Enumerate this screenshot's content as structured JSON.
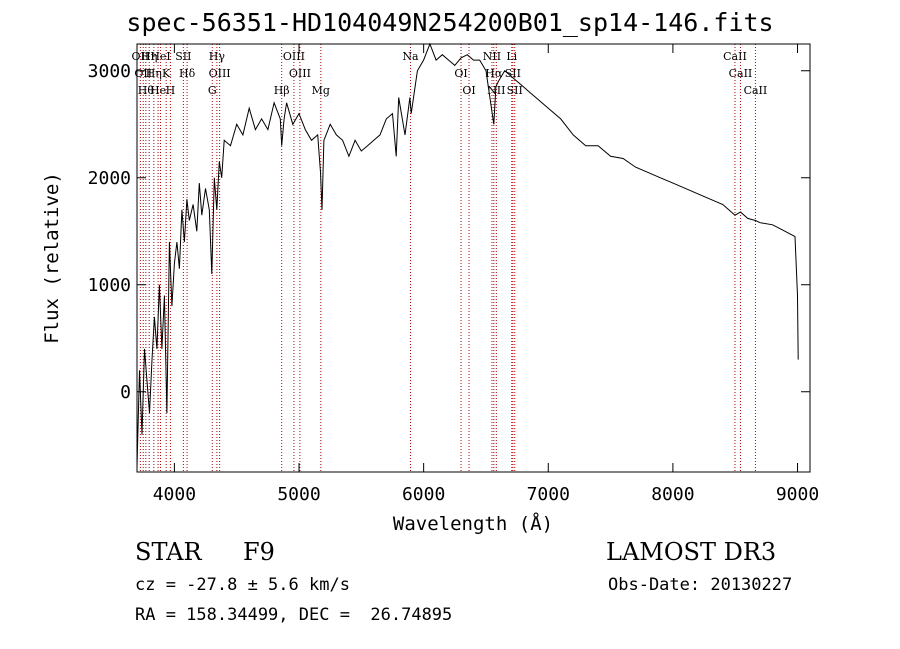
{
  "page": {
    "title": "spec-56351-HD104049N254200B01_sp14-146.fits"
  },
  "info": {
    "class_label": "STAR",
    "subclass": "F9",
    "survey": "LAMOST DR3",
    "cz": "cz = -27.8 ± 5.6 km/s",
    "obs_date": "Obs-Date: 20130227",
    "coords": "RA = 158.34499, DEC =  26.74895"
  },
  "colors": {
    "spectrum": "#000000",
    "line_marker": "#b30000",
    "axis": "#000000"
  },
  "chart_data": {
    "type": "line",
    "title": "spec-56351-HD104049N254200B01_sp14-146.fits",
    "xlabel": "Wavelength (Å)",
    "ylabel": "Flux (relative)",
    "xlim": [
      3700,
      9100
    ],
    "ylim": [
      -750,
      3250
    ],
    "xticks": [
      4000,
      5000,
      6000,
      7000,
      8000,
      9000
    ],
    "yticks": [
      0,
      1000,
      2000,
      3000
    ],
    "grid": false,
    "series": [
      {
        "x": [
          3700,
          3720,
          3740,
          3760,
          3780,
          3800,
          3820,
          3840,
          3860,
          3880,
          3900,
          3920,
          3940,
          3960,
          3980,
          4000,
          4020,
          4040,
          4060,
          4080,
          4100,
          4120,
          4150,
          4180,
          4200,
          4220,
          4250,
          4280,
          4300,
          4320,
          4340,
          4360,
          4380,
          4400,
          4450,
          4500,
          4550,
          4600,
          4650,
          4700,
          4750,
          4800,
          4850,
          4861,
          4880,
          4900,
          4950,
          5000,
          5050,
          5100,
          5150,
          5172,
          5184,
          5200,
          5250,
          5300,
          5350,
          5400,
          5450,
          5500,
          5550,
          5600,
          5650,
          5700,
          5750,
          5780,
          5800,
          5850,
          5890,
          5900,
          5950,
          6000,
          6050,
          6100,
          6150,
          6200,
          6250,
          6300,
          6350,
          6400,
          6450,
          6500,
          6563,
          6580,
          6600,
          6650,
          6700,
          6750,
          6800,
          6850,
          6900,
          7000,
          7100,
          7200,
          7300,
          7400,
          7500,
          7600,
          7700,
          7800,
          7900,
          8000,
          8100,
          8200,
          8300,
          8400,
          8498,
          8542,
          8600,
          8662,
          8700,
          8800,
          8900,
          8980,
          9000,
          9005
        ],
        "y": [
          -700,
          200,
          -400,
          400,
          100,
          -200,
          300,
          700,
          400,
          1000,
          400,
          900,
          -200,
          1400,
          800,
          1200,
          1400,
          1150,
          1700,
          1400,
          1800,
          1600,
          1750,
          1500,
          1950,
          1650,
          1900,
          1700,
          1100,
          2000,
          1700,
          2150,
          2000,
          2350,
          2300,
          2500,
          2400,
          2650,
          2450,
          2550,
          2450,
          2700,
          2550,
          2300,
          2550,
          2700,
          2500,
          2600,
          2450,
          2350,
          2400,
          2050,
          1700,
          2350,
          2500,
          2400,
          2350,
          2200,
          2350,
          2250,
          2300,
          2350,
          2400,
          2550,
          2600,
          2200,
          2750,
          2400,
          2750,
          2600,
          3000,
          3100,
          3250,
          3100,
          3150,
          3100,
          3050,
          3120,
          3150,
          3100,
          3100,
          3000,
          2500,
          2850,
          2900,
          3000,
          2950,
          2900,
          2850,
          2800,
          2750,
          2650,
          2550,
          2400,
          2300,
          2300,
          2200,
          2180,
          2100,
          2050,
          2000,
          1950,
          1900,
          1850,
          1800,
          1750,
          1650,
          1680,
          1620,
          1600,
          1580,
          1560,
          1500,
          1450,
          900,
          300
        ]
      }
    ],
    "line_markers": [
      {
        "wavelength": 3727,
        "label": "OII"
      },
      {
        "wavelength": 3750,
        "label": "OII"
      },
      {
        "wavelength": 3771,
        "label": "Hθ"
      },
      {
        "wavelength": 3798,
        "label": "Hη"
      },
      {
        "wavelength": 3835,
        "label": "Hη"
      },
      {
        "wavelength": 3869,
        "label": "He"
      },
      {
        "wavelength": 3889,
        "label": "HeI"
      },
      {
        "wavelength": 3934,
        "label": "K"
      },
      {
        "wavelength": 3968,
        "label": "H"
      },
      {
        "wavelength": 4072,
        "label": "SII"
      },
      {
        "wavelength": 4102,
        "label": "Hδ"
      },
      {
        "wavelength": 4304,
        "label": "G"
      },
      {
        "wavelength": 4341,
        "label": "Hγ"
      },
      {
        "wavelength": 4363,
        "label": "OIII"
      },
      {
        "wavelength": 4861,
        "label": "Hβ"
      },
      {
        "wavelength": 4959,
        "label": "OIII"
      },
      {
        "wavelength": 5007,
        "label": "OIII"
      },
      {
        "wavelength": 5175,
        "label": "Mg"
      },
      {
        "wavelength": 5894,
        "label": "Na"
      },
      {
        "wavelength": 6300,
        "label": "OI"
      },
      {
        "wavelength": 6364,
        "label": "OI"
      },
      {
        "wavelength": 6548,
        "label": "NII"
      },
      {
        "wavelength": 6563,
        "label": "Hα"
      },
      {
        "wavelength": 6583,
        "label": "NII"
      },
      {
        "wavelength": 6707,
        "label": "Li"
      },
      {
        "wavelength": 6716,
        "label": "SII"
      },
      {
        "wavelength": 6731,
        "label": "SII"
      },
      {
        "wavelength": 8498,
        "label": "CaII"
      },
      {
        "wavelength": 8542,
        "label": "CaII"
      },
      {
        "wavelength": 8662,
        "label": "CaII"
      }
    ]
  }
}
